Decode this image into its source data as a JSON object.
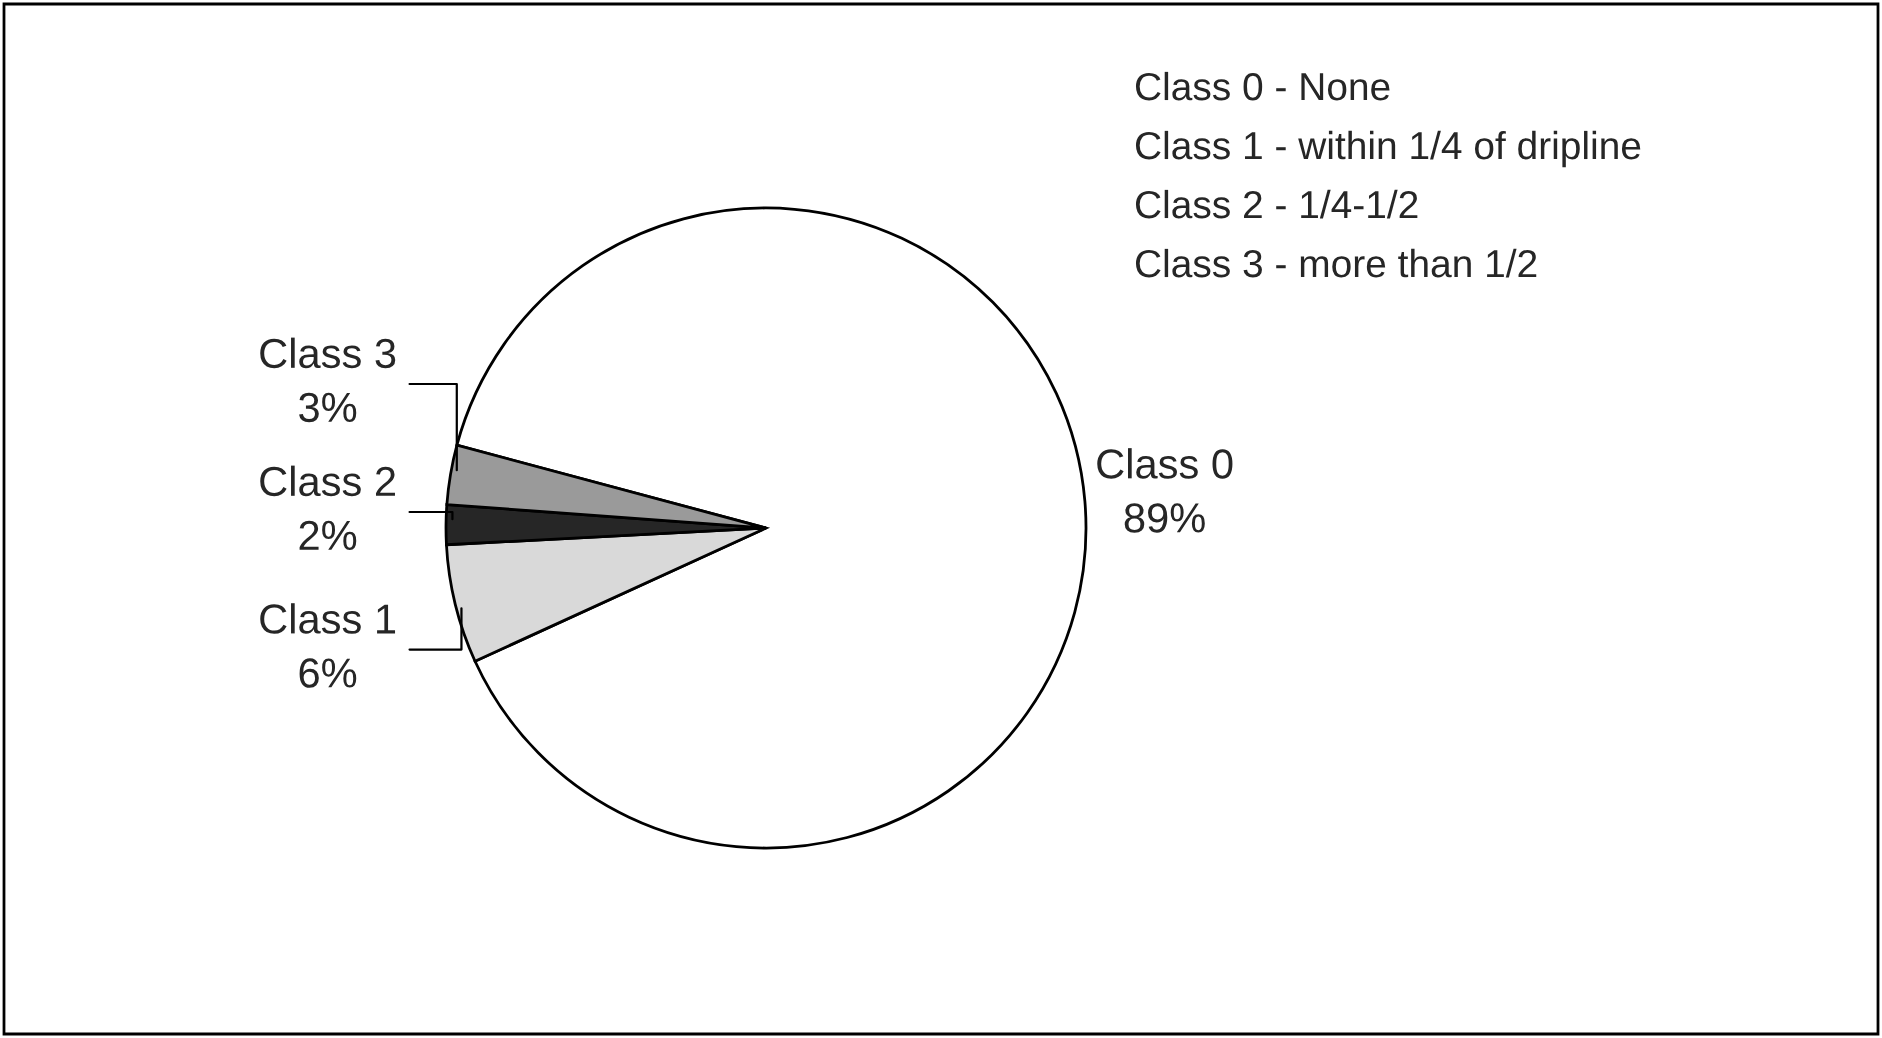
{
  "chart_data": {
    "type": "pie",
    "categories": [
      "Class 0",
      "Class 1",
      "Class 2",
      "Class 3"
    ],
    "values": [
      89,
      6,
      2,
      3
    ],
    "value_labels": [
      "89%",
      "6%",
      "2%",
      "3%"
    ],
    "colors": [
      "#ffffff",
      "#d9d9d9",
      "#262626",
      "#9a9a9a"
    ],
    "annotations": [
      "Class 0 - None",
      "Class 1 - within 1/4 of dripline",
      "Class 2 - 1/4-1/2",
      "Class 3 - more than 1/2"
    ],
    "legend": false
  }
}
